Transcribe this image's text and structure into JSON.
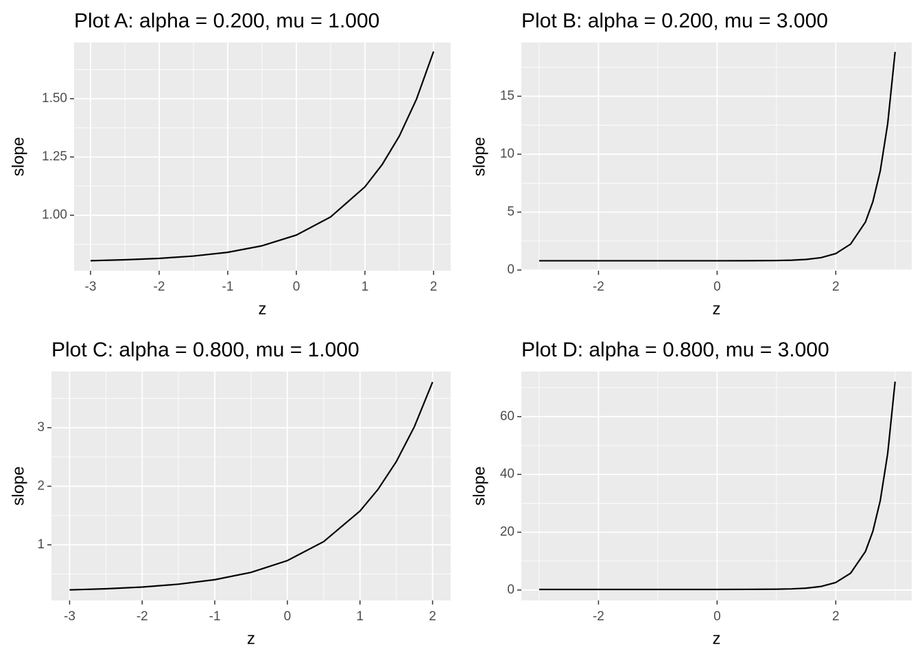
{
  "chart_data": [
    {
      "type": "line",
      "title": "Plot A: alpha = 0.200, mu = 1.000",
      "x_label": "z",
      "y_label": "slope",
      "x": [
        -3,
        -2.5,
        -2,
        -1.5,
        -1,
        -0.5,
        0,
        0.5,
        1,
        1.25,
        1.5,
        1.75,
        2
      ],
      "values": [
        0.805,
        0.809,
        0.815,
        0.825,
        0.841,
        0.869,
        0.915,
        0.993,
        1.122,
        1.217,
        1.339,
        1.497,
        1.702
      ],
      "color": "#000000",
      "xlim": [
        -3.24,
        2.25
      ],
      "ylim": [
        0.762,
        1.741
      ],
      "xticks": [
        -3,
        -2,
        -1,
        0,
        1,
        2
      ],
      "yticks": [
        {
          "value": 1,
          "label": "1.00"
        },
        {
          "value": 1.25,
          "label": "1.25"
        },
        {
          "value": 1.5,
          "label": "1.50"
        }
      ],
      "grid": true
    },
    {
      "type": "line",
      "title": "Plot B: alpha = 0.200, mu = 3.000",
      "x_label": "z",
      "y_label": "slope",
      "x": [
        -3,
        -2,
        -1,
        0,
        0.5,
        1,
        1.25,
        1.5,
        1.75,
        2,
        2.25,
        2.5,
        2.625,
        2.75,
        2.875,
        3
      ],
      "values": [
        0.8,
        0.8,
        0.8,
        0.801,
        0.804,
        0.821,
        0.85,
        0.915,
        1.067,
        1.42,
        2.24,
        4.144,
        5.9,
        8.563,
        12.63,
        18.83
      ],
      "color": "#000000",
      "xlim": [
        -3.3,
        3.28
      ],
      "ylim": [
        -0.06,
        19.64
      ],
      "xticks": [
        -2,
        0,
        2
      ],
      "yticks": [
        0,
        5,
        10,
        15
      ],
      "grid": true
    },
    {
      "type": "line",
      "title": "Plot C: alpha = 0.800, mu = 1.000",
      "x_label": "z",
      "y_label": "slope",
      "x": [
        -3,
        -2.5,
        -2,
        -1.5,
        -1,
        -0.5,
        0,
        0.5,
        1,
        1.25,
        1.5,
        1.75,
        2
      ],
      "values": [
        0.23,
        0.249,
        0.278,
        0.327,
        0.404,
        0.529,
        0.73,
        1.054,
        1.577,
        1.949,
        2.42,
        3.018,
        3.779
      ],
      "color": "#000000",
      "xlim": [
        -3.25,
        2.25
      ],
      "ylim": [
        0.05,
        3.96
      ],
      "xticks": [
        -3,
        -2,
        -1,
        0,
        1,
        2
      ],
      "yticks": [
        1,
        2,
        3
      ],
      "grid": true
    },
    {
      "type": "line",
      "title": "Plot D: alpha = 0.800, mu = 3.000",
      "x_label": "z",
      "y_label": "slope",
      "x": [
        -3,
        -2,
        -1,
        0,
        0.5,
        1,
        1.25,
        1.5,
        1.75,
        2,
        2.25,
        2.5,
        2.625,
        2.75,
        2.875,
        3
      ],
      "values": [
        0.2,
        0.2,
        0.2,
        0.2,
        0.215,
        0.28,
        0.387,
        0.638,
        1.226,
        2.6,
        5.815,
        13.34,
        20.3,
        30.94,
        47.2,
        72.1
      ],
      "color": "#000000",
      "xlim": [
        -3.3,
        3.28
      ],
      "ylim": [
        -3.6,
        75.6
      ],
      "xticks": [
        -2,
        0,
        2
      ],
      "yticks": [
        0,
        20,
        40,
        60
      ],
      "grid": true
    }
  ]
}
